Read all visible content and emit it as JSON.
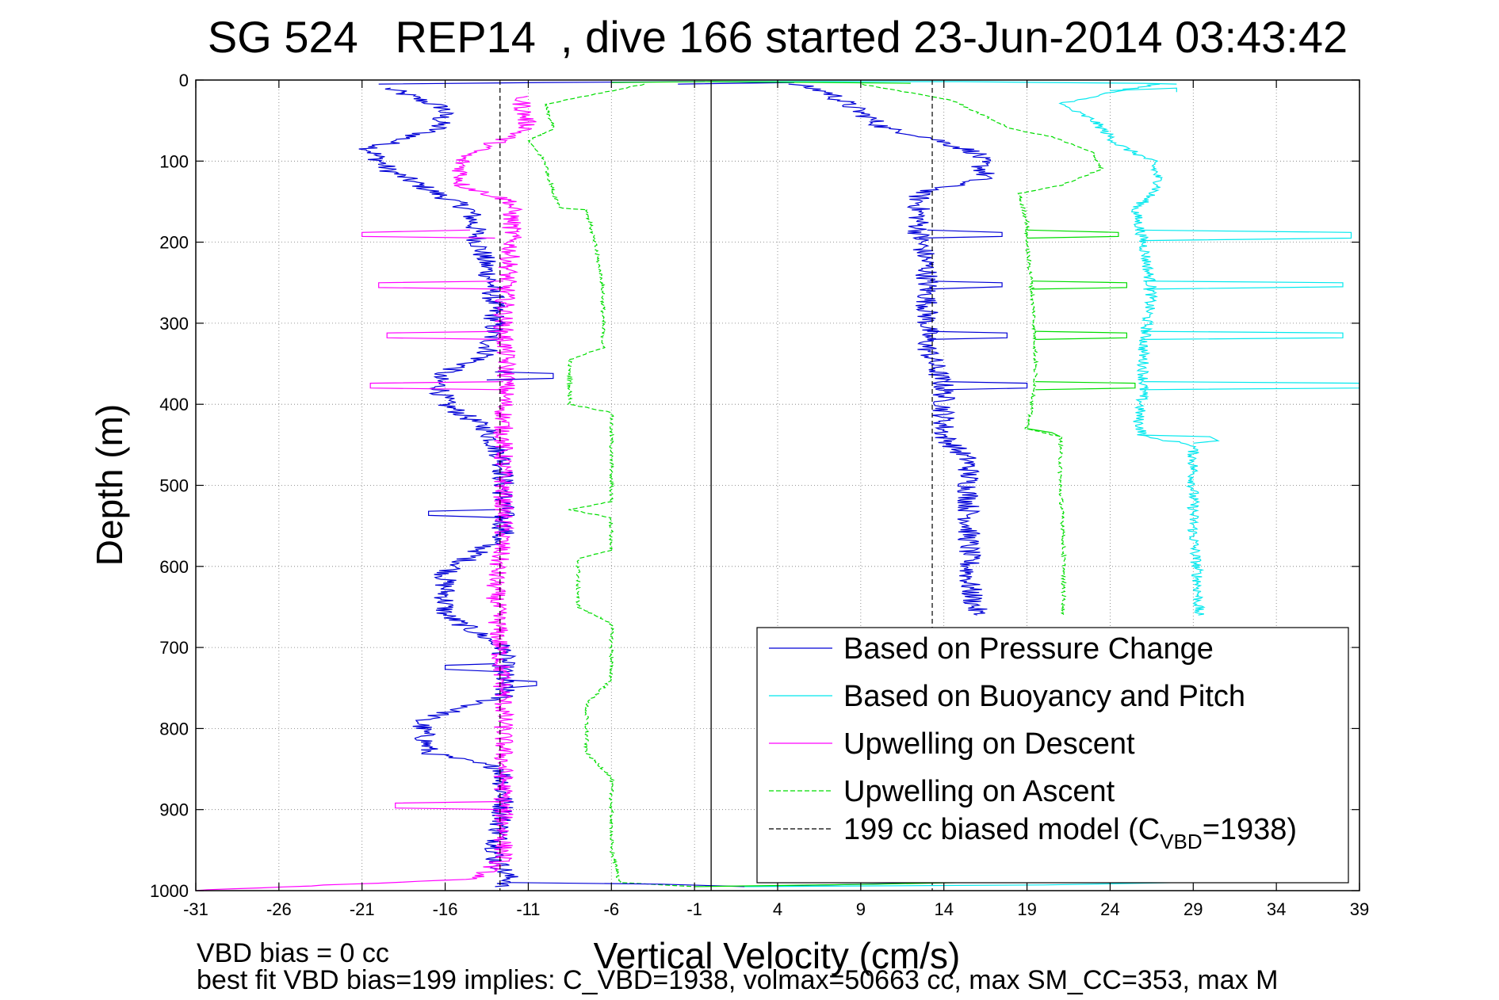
{
  "chart_data": {
    "type": "line",
    "title": "SG 524   REP14  , dive 166 started 23-Jun-2014 03:43:42",
    "xlabel": "Vertical Velocity (cm/s)",
    "ylabel": "Depth (m)",
    "xlim": [
      -31,
      39
    ],
    "ylim": [
      1000,
      0
    ],
    "y_reversed": true,
    "x_ticks": [
      -31,
      -26,
      -21,
      -16,
      -11,
      -6,
      -1,
      4,
      9,
      14,
      19,
      24,
      29,
      34,
      39
    ],
    "y_ticks": [
      0,
      100,
      200,
      300,
      400,
      500,
      600,
      700,
      800,
      900,
      1000
    ],
    "grid": true,
    "legend_position": "bottom-right",
    "zero_line_x": 0,
    "model_lines_x": [
      -12.7,
      13.3
    ],
    "legend": {
      "items": [
        {
          "label": "Based on Pressure Change",
          "color": "#0000d6",
          "style": "solid"
        },
        {
          "label": "Based on Buoyancy and Pitch",
          "color": "#00e8ee",
          "style": "solid"
        },
        {
          "label": "Upwelling on Descent",
          "color": "#ff00ff",
          "style": "solid"
        },
        {
          "label": "Upwelling on Ascent",
          "color": "#00dd00",
          "style": "dashed"
        },
        {
          "label_main": "199 cc biased model (C",
          "label_sub": "VBD",
          "label_tail": "=1938)",
          "color": "#000000",
          "style": "dashed"
        }
      ]
    },
    "series": [
      {
        "name": "Based on Pressure Change",
        "color": "#0000d6",
        "dash": "",
        "jitter": 0.7,
        "points": [
          [
            -19.5,
            10
          ],
          [
            -16,
            35
          ],
          [
            -16.5,
            60
          ],
          [
            -20.5,
            85
          ],
          [
            -19.5,
            110
          ],
          [
            -18,
            125
          ],
          [
            -14.5,
            160
          ],
          [
            -14,
            200
          ],
          [
            -13.2,
            250
          ],
          [
            -13,
            300
          ],
          [
            -13.5,
            340
          ],
          [
            -16.5,
            365
          ],
          [
            -16,
            400
          ],
          [
            -13.5,
            430
          ],
          [
            -12.5,
            470
          ],
          [
            -12.5,
            520
          ],
          [
            -12.5,
            560
          ],
          [
            -16,
            610
          ],
          [
            -16,
            660
          ],
          [
            -12.5,
            700
          ],
          [
            -12.5,
            760
          ],
          [
            -17.5,
            790
          ],
          [
            -17,
            830
          ],
          [
            -12.5,
            850
          ],
          [
            -12.5,
            900
          ],
          [
            -13,
            960
          ],
          [
            -12,
            990
          ],
          [
            -13,
            995
          ]
        ]
      },
      {
        "name": "Based on Pressure Change (ascent)",
        "color": "#0000d6",
        "dash": "",
        "jitter": 0.7,
        "points": [
          [
            5,
            5
          ],
          [
            7,
            15
          ],
          [
            9,
            40
          ],
          [
            10.5,
            60
          ],
          [
            13,
            70
          ],
          [
            16,
            90
          ],
          [
            16.5,
            120
          ],
          [
            12.5,
            140
          ],
          [
            12.5,
            190
          ],
          [
            13,
            230
          ],
          [
            13,
            300
          ],
          [
            13,
            330
          ],
          [
            14,
            380
          ],
          [
            14,
            440
          ],
          [
            15.5,
            470
          ],
          [
            15.5,
            550
          ],
          [
            15.5,
            620
          ],
          [
            16,
            660
          ]
        ]
      },
      {
        "name": "Based on Buoyancy and Pitch",
        "color": "#00e8ee",
        "dash": "",
        "jitter": 0.35,
        "points": [
          [
            27,
            5
          ],
          [
            24,
            15
          ],
          [
            21,
            30
          ],
          [
            23,
            50
          ],
          [
            24.5,
            80
          ],
          [
            26.5,
            100
          ],
          [
            27,
            130
          ],
          [
            25.5,
            160
          ],
          [
            26,
            200
          ],
          [
            26.5,
            260
          ],
          [
            26,
            330
          ],
          [
            26,
            380
          ],
          [
            25.7,
            420
          ],
          [
            26,
            440
          ],
          [
            29,
            450
          ],
          [
            29,
            500
          ],
          [
            29,
            560
          ],
          [
            29.3,
            620
          ],
          [
            29.3,
            660
          ]
        ]
      },
      {
        "name": "Upwelling on Descent",
        "color": "#ff00ff",
        "dash": "",
        "jitter": 0.6,
        "points": [
          [
            -11.5,
            20
          ],
          [
            -11,
            60
          ],
          [
            -15,
            95
          ],
          [
            -15,
            130
          ],
          [
            -12,
            150
          ],
          [
            -12,
            200
          ],
          [
            -12.3,
            250
          ],
          [
            -12.5,
            300
          ],
          [
            -12.3,
            360
          ],
          [
            -12.5,
            420
          ],
          [
            -12.5,
            500
          ],
          [
            -12.5,
            560
          ],
          [
            -13,
            620
          ],
          [
            -12.8,
            680
          ],
          [
            -12.5,
            760
          ],
          [
            -12.5,
            840
          ],
          [
            -12.5,
            900
          ],
          [
            -12.5,
            960
          ],
          [
            -14,
            985
          ],
          [
            -31,
            1000
          ]
        ]
      },
      {
        "name": "Upwelling on Ascent",
        "color": "#00dd00",
        "dash": "6,3",
        "jitter": 0.12,
        "points": [
          [
            -4,
            5
          ],
          [
            -10,
            30
          ],
          [
            -9.5,
            60
          ],
          [
            -11,
            75
          ],
          [
            -10,
            100
          ],
          [
            -9.5,
            140
          ],
          [
            -9,
            158
          ],
          [
            -7.5,
            160
          ],
          [
            -7,
            200
          ],
          [
            -6.5,
            260
          ],
          [
            -6.5,
            330
          ],
          [
            -8.5,
            345
          ],
          [
            -8.5,
            400
          ],
          [
            -6,
            410
          ],
          [
            -6,
            520
          ],
          [
            -8.5,
            530
          ],
          [
            -6,
            540
          ],
          [
            -6,
            580
          ],
          [
            -8,
            590
          ],
          [
            -8,
            650
          ],
          [
            -6,
            670
          ],
          [
            -6,
            740
          ],
          [
            -7.5,
            770
          ],
          [
            -7.5,
            830
          ],
          [
            -6,
            860
          ],
          [
            -6,
            950
          ],
          [
            -5.5,
            990
          ],
          [
            -1,
            995
          ]
        ]
      },
      {
        "name": "Upwelling on Ascent (ascent)",
        "color": "#00dd00",
        "dash": "6,3",
        "jitter": 0.12,
        "points": [
          [
            9,
            5
          ],
          [
            14.5,
            25
          ],
          [
            16,
            40
          ],
          [
            18,
            60
          ],
          [
            20.5,
            70
          ],
          [
            23,
            90
          ],
          [
            23.5,
            110
          ],
          [
            21,
            130
          ],
          [
            18.5,
            140
          ],
          [
            19,
            175
          ],
          [
            19,
            200
          ],
          [
            19.3,
            260
          ],
          [
            19.5,
            320
          ],
          [
            19.5,
            380
          ],
          [
            19,
            430
          ],
          [
            21,
            440
          ],
          [
            21,
            500
          ],
          [
            21.2,
            560
          ],
          [
            21.2,
            620
          ],
          [
            21.2,
            660
          ]
        ]
      }
    ],
    "spikes": [
      {
        "color": "#00e8ee",
        "points": [
          [
            24,
            13
          ],
          [
            28,
            10
          ],
          [
            28,
            15
          ]
        ]
      },
      {
        "color": "#00e8ee",
        "points": [
          [
            25.5,
            185
          ],
          [
            38.5,
            188
          ],
          [
            38.5,
            195
          ],
          [
            26,
            198
          ]
        ]
      },
      {
        "color": "#00e8ee",
        "points": [
          [
            26,
            248
          ],
          [
            38,
            250
          ],
          [
            38,
            255
          ],
          [
            26,
            258
          ]
        ]
      },
      {
        "color": "#00e8ee",
        "points": [
          [
            26,
            310
          ],
          [
            38,
            312
          ],
          [
            38,
            318
          ],
          [
            26,
            320
          ]
        ]
      },
      {
        "color": "#00e8ee",
        "points": [
          [
            26,
            372
          ],
          [
            39,
            374
          ],
          [
            39,
            380
          ],
          [
            25.8,
            382
          ]
        ]
      },
      {
        "color": "#00e8ee",
        "points": [
          [
            26,
            438
          ],
          [
            30,
            440
          ],
          [
            30.5,
            445
          ],
          [
            29,
            448
          ]
        ]
      },
      {
        "color": "#0000d6",
        "points": [
          [
            13,
            185
          ],
          [
            17.5,
            188
          ],
          [
            17.5,
            193
          ],
          [
            12.5,
            195
          ]
        ]
      },
      {
        "color": "#0000d6",
        "points": [
          [
            13,
            248
          ],
          [
            17.5,
            250
          ],
          [
            17.5,
            255
          ],
          [
            13,
            258
          ]
        ]
      },
      {
        "color": "#0000d6",
        "points": [
          [
            13,
            310
          ],
          [
            17.8,
            312
          ],
          [
            17.8,
            318
          ],
          [
            13,
            320
          ]
        ]
      },
      {
        "color": "#0000d6",
        "points": [
          [
            14,
            372
          ],
          [
            19,
            374
          ],
          [
            19,
            380
          ],
          [
            14,
            382
          ]
        ]
      },
      {
        "color": "#0000d6",
        "points": [
          [
            -13,
            360
          ],
          [
            -9.5,
            362
          ],
          [
            -9.5,
            368
          ],
          [
            -13.5,
            370
          ]
        ]
      },
      {
        "color": "#0000d6",
        "points": [
          [
            -13,
            530
          ],
          [
            -17,
            532
          ],
          [
            -17,
            537
          ],
          [
            -12.5,
            540
          ]
        ]
      },
      {
        "color": "#0000d6",
        "points": [
          [
            -13,
            720
          ],
          [
            -16,
            722
          ],
          [
            -16,
            727
          ],
          [
            -12.5,
            730
          ]
        ]
      },
      {
        "color": "#0000d6",
        "points": [
          [
            -12.5,
            740
          ],
          [
            -10.5,
            742
          ],
          [
            -10.5,
            747
          ],
          [
            -12.5,
            750
          ]
        ]
      },
      {
        "color": "#ff00ff",
        "points": [
          [
            -14.5,
            185
          ],
          [
            -21,
            188
          ],
          [
            -21,
            193
          ],
          [
            -13,
            195
          ]
        ]
      },
      {
        "color": "#ff00ff",
        "points": [
          [
            -12.5,
            248
          ],
          [
            -20,
            250
          ],
          [
            -20,
            256
          ],
          [
            -12.5,
            258
          ]
        ]
      },
      {
        "color": "#ff00ff",
        "points": [
          [
            -12.5,
            310
          ],
          [
            -19.5,
            312
          ],
          [
            -19.5,
            318
          ],
          [
            -12.5,
            320
          ]
        ]
      },
      {
        "color": "#ff00ff",
        "points": [
          [
            -12.5,
            372
          ],
          [
            -20.5,
            374
          ],
          [
            -20.5,
            380
          ],
          [
            -12.5,
            382
          ]
        ]
      },
      {
        "color": "#ff00ff",
        "points": [
          [
            -12.5,
            890
          ],
          [
            -19,
            892
          ],
          [
            -19,
            898
          ],
          [
            -12.5,
            900
          ]
        ]
      },
      {
        "color": "#00dd00",
        "points": [
          [
            19,
            185
          ],
          [
            24.5,
            188
          ],
          [
            24.5,
            193
          ],
          [
            19,
            195
          ]
        ]
      },
      {
        "color": "#00dd00",
        "points": [
          [
            19.3,
            248
          ],
          [
            25,
            250
          ],
          [
            25,
            256
          ],
          [
            19.3,
            258
          ]
        ]
      },
      {
        "color": "#00dd00",
        "points": [
          [
            19.5,
            310
          ],
          [
            25,
            312
          ],
          [
            25,
            318
          ],
          [
            19.5,
            320
          ]
        ]
      },
      {
        "color": "#00dd00",
        "points": [
          [
            19.5,
            372
          ],
          [
            25.5,
            374
          ],
          [
            25.5,
            380
          ],
          [
            19.5,
            382
          ]
        ]
      },
      {
        "color": "#00dd00",
        "points": [
          [
            19,
            430
          ],
          [
            20.5,
            435
          ],
          [
            21,
            440
          ]
        ]
      },
      {
        "color": "#0000d6",
        "points": [
          [
            -12,
            990
          ],
          [
            -3,
            992
          ],
          [
            2,
            995
          ],
          [
            14,
            990
          ]
        ]
      },
      {
        "color": "#00e8ee",
        "points": [
          [
            2,
            995
          ],
          [
            20,
            993
          ],
          [
            28,
            990
          ],
          [
            30,
            988
          ]
        ]
      },
      {
        "color": "#00dd00",
        "points": [
          [
            -1,
            995
          ],
          [
            10,
            992
          ],
          [
            20,
            988
          ],
          [
            22,
            985
          ]
        ]
      },
      {
        "color": "#0000d6",
        "points": [
          [
            -20,
            5
          ],
          [
            -10,
            3
          ],
          [
            0,
            2
          ],
          [
            5,
            3
          ],
          [
            -2,
            5
          ]
        ]
      },
      {
        "color": "#00e8ee",
        "points": [
          [
            0,
            2
          ],
          [
            15,
            2
          ],
          [
            20,
            3
          ],
          [
            26,
            4
          ],
          [
            28,
            5
          ]
        ]
      },
      {
        "color": "#00dd00",
        "points": [
          [
            -6,
            3
          ],
          [
            0,
            2
          ],
          [
            7,
            3
          ],
          [
            12,
            4
          ]
        ]
      }
    ]
  },
  "footnotes": {
    "line1": "VBD bias = 0 cc",
    "line2": "best fit VBD bias=199 implies: C_VBD=1938, volmax=50663 cc, max SM_CC=353, max M"
  }
}
